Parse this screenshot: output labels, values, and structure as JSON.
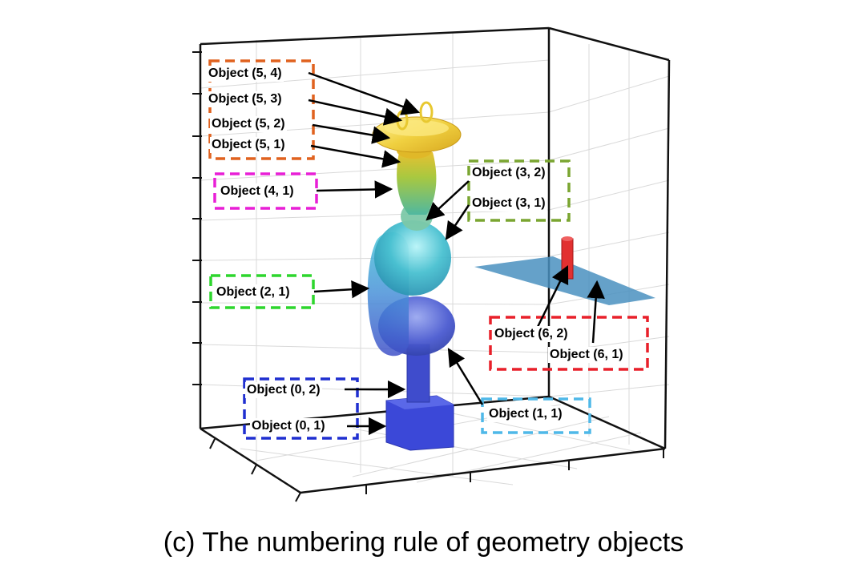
{
  "labels": {
    "obj_5_4": "Object (5, 4)",
    "obj_5_3": "Object (5, 3)",
    "obj_5_2": "Object (5, 2)",
    "obj_5_1": "Object (5, 1)",
    "obj_4_1": "Object (4, 1)",
    "obj_3_2": "Object (3, 2)",
    "obj_3_1": "Object (3, 1)",
    "obj_2_1": "Object (2, 1)",
    "obj_6_2": "Object (6, 2)",
    "obj_6_1": "Object (6, 1)",
    "obj_0_2": "Object (0, 2)",
    "obj_0_1": "Object (0, 1)",
    "obj_1_1": "Object (1, 1)"
  },
  "caption": "(c) The numbering rule of geometry objects",
  "group_colors": {
    "group_5": "#e0621f",
    "group_4": "#e81fd6",
    "group_3": "#7aa531",
    "group_2": "#2dd62d",
    "group_6": "#e8202a",
    "group_0": "#1f2fd0",
    "group_1": "#4fb8e8"
  }
}
